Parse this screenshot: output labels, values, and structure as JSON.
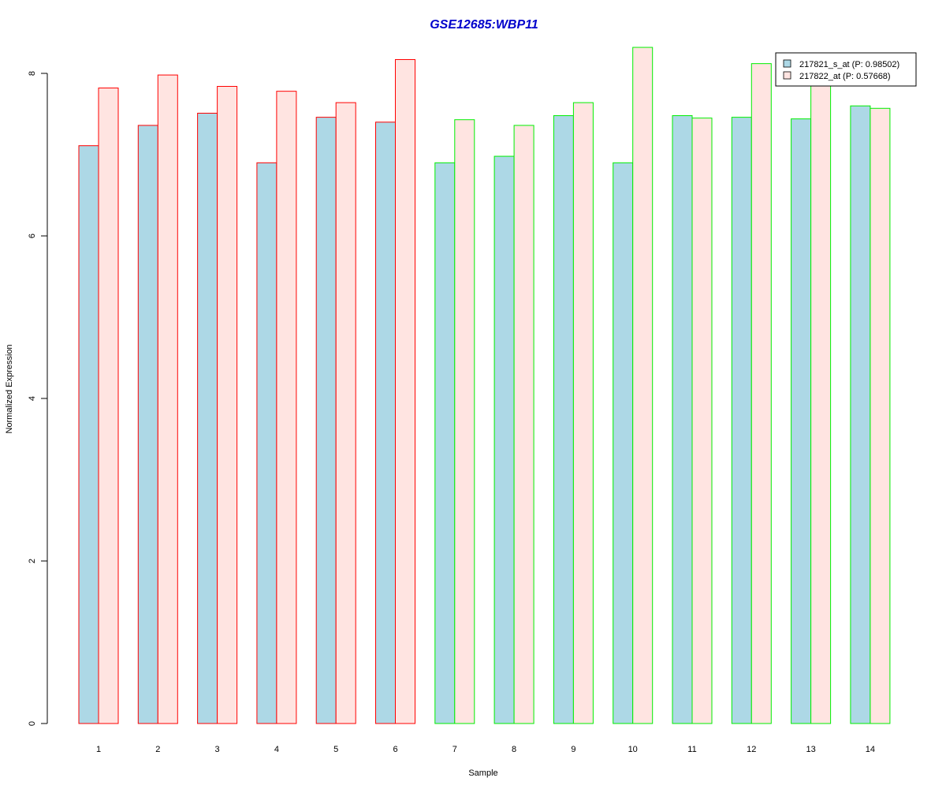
{
  "chart_data": {
    "type": "bar",
    "title": "GSE12685:WBP11",
    "xlabel": "Sample",
    "ylabel": "Normalized Expression",
    "categories": [
      "1",
      "2",
      "3",
      "4",
      "5",
      "6",
      "7",
      "8",
      "9",
      "10",
      "11",
      "12",
      "13",
      "14"
    ],
    "ylim": [
      0,
      8
    ],
    "yticks": [
      "0",
      "2",
      "4",
      "6",
      "8"
    ],
    "series": [
      {
        "name": "217821_s_at (P: 0.98502)",
        "fill": "#add8e6",
        "values": [
          7.11,
          7.36,
          7.51,
          6.9,
          7.46,
          7.4,
          6.9,
          6.98,
          7.48,
          6.9,
          7.48,
          7.46,
          7.44,
          7.6
        ]
      },
      {
        "name": "217822_at (P: 0.57668)",
        "fill": "#ffe4e1",
        "values": [
          7.82,
          7.98,
          7.84,
          7.78,
          7.64,
          8.17,
          7.43,
          7.36,
          7.64,
          8.32,
          7.45,
          8.12,
          7.85,
          7.57
        ]
      }
    ],
    "group_border_colors": [
      "#ff0000",
      "#ff0000",
      "#ff0000",
      "#ff0000",
      "#ff0000",
      "#ff0000",
      "#00ee00",
      "#00ee00",
      "#00ee00",
      "#00ee00",
      "#00ee00",
      "#00ee00",
      "#00ee00",
      "#00ee00"
    ],
    "legend_position": "top-right",
    "grid": false
  }
}
